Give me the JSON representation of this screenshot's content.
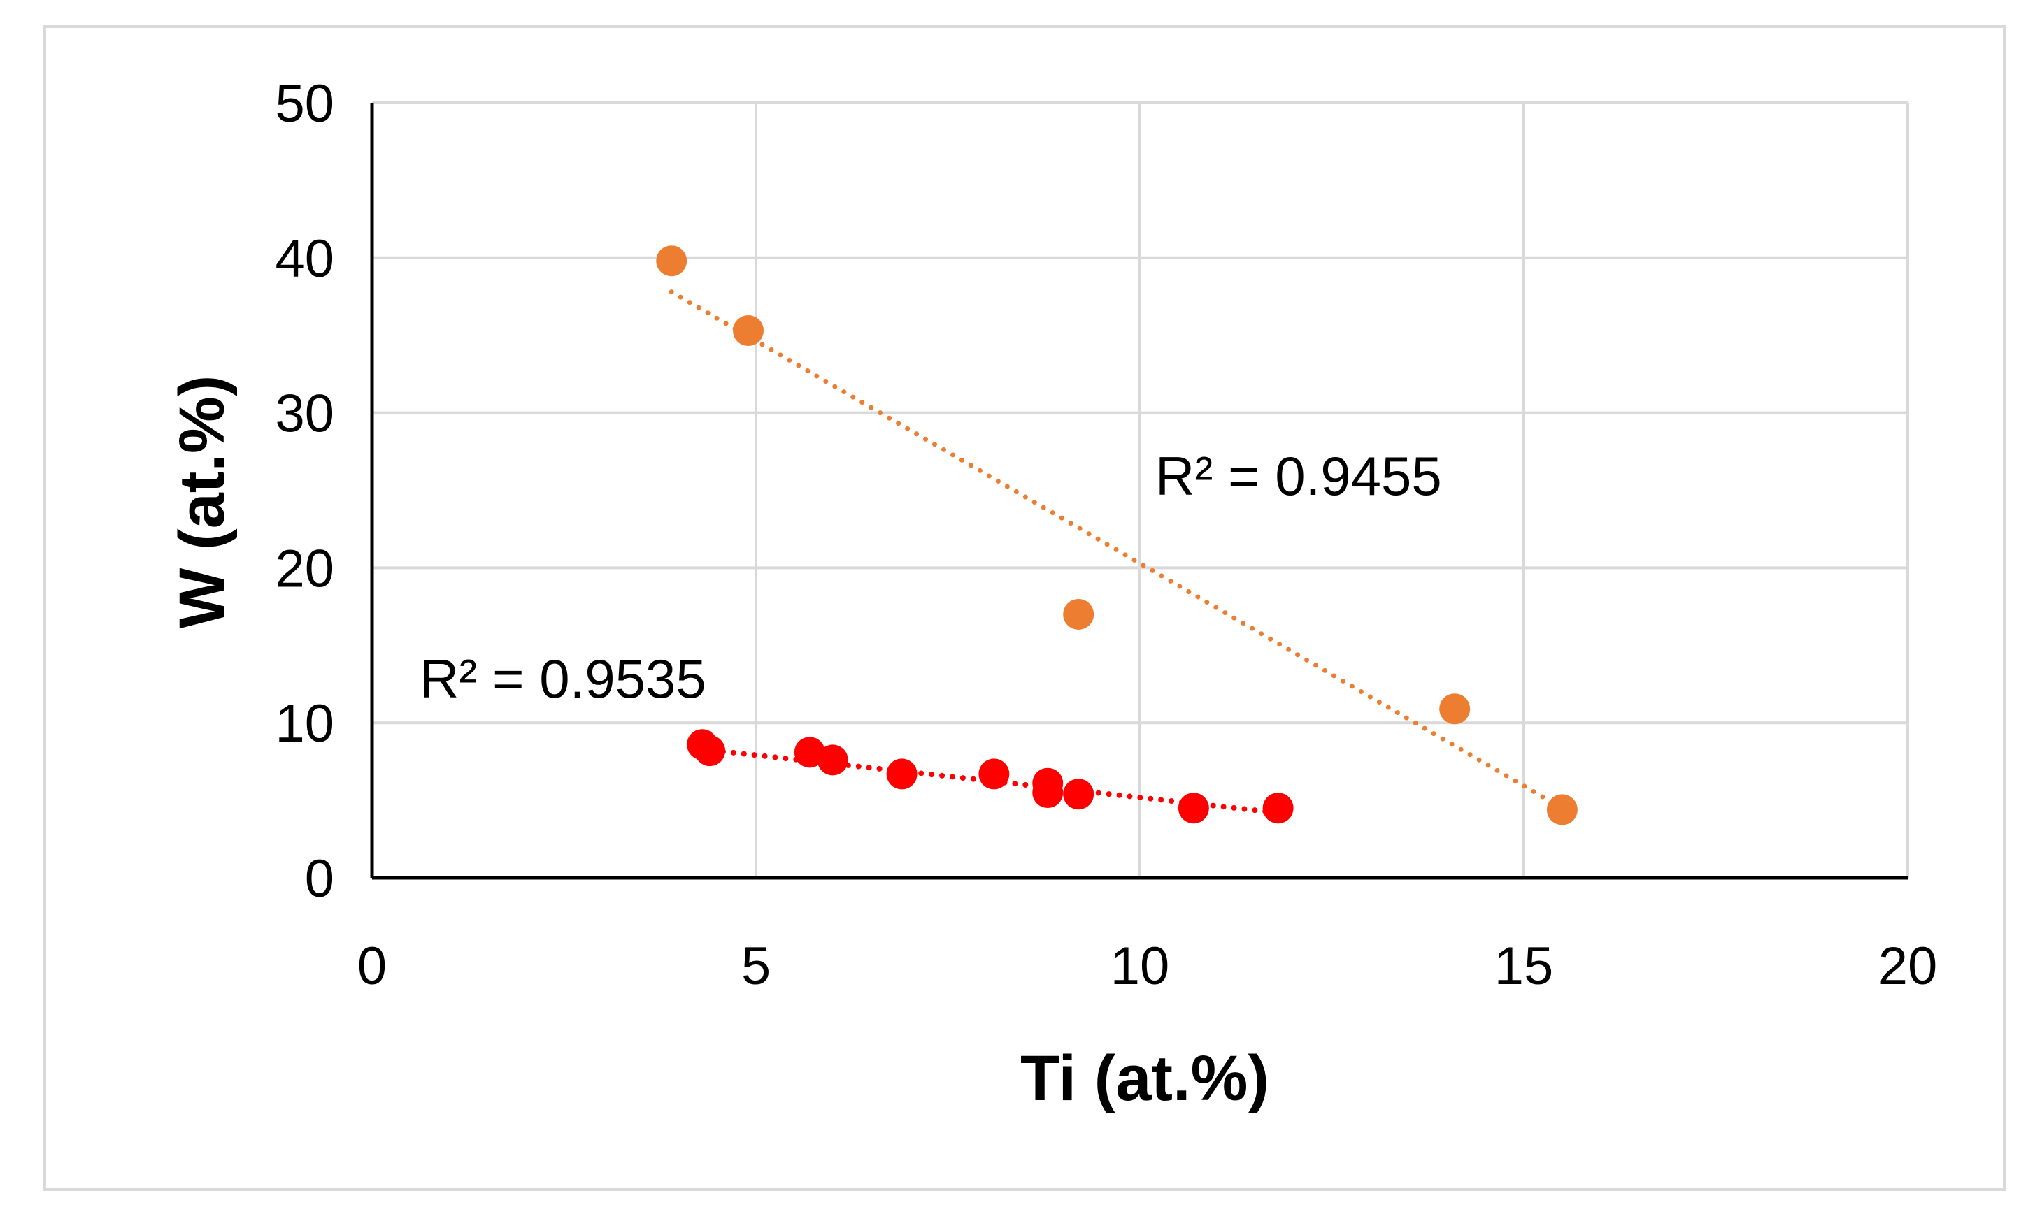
{
  "chart_data": {
    "type": "scatter",
    "title": "",
    "xlabel": "Ti (at.%)",
    "ylabel": "W (at.%)",
    "xlim": [
      0,
      20
    ],
    "ylim": [
      0,
      50
    ],
    "xticks": [
      0,
      5,
      10,
      15,
      20
    ],
    "yticks": [
      0,
      10,
      20,
      30,
      40,
      50
    ],
    "grid": true,
    "series": [
      {
        "name": "orange",
        "color": "#ed7d31",
        "x": [
          3.9,
          4.9,
          9.2,
          14.1,
          15.5
        ],
        "y": [
          39.8,
          35.3,
          17.0,
          10.9,
          4.4
        ],
        "trendline": {
          "type": "linear",
          "dotted": true,
          "x_from": 3.9,
          "x_to": 15.5,
          "y_from": 37.8,
          "y_to": 4.5
        },
        "r2_label": "R² = 0.9455"
      },
      {
        "name": "red",
        "color": "#ff0000",
        "x": [
          4.3,
          4.4,
          5.7,
          6.0,
          6.9,
          8.1,
          8.8,
          8.8,
          9.2,
          10.7,
          11.8
        ],
        "y": [
          8.6,
          8.2,
          8.1,
          7.6,
          6.7,
          6.7,
          6.1,
          5.5,
          5.4,
          4.5,
          4.5
        ],
        "trendline": {
          "type": "linear",
          "dotted": true,
          "x_from": 4.3,
          "x_to": 11.8,
          "y_from": 8.3,
          "y_to": 4.2
        },
        "r2_label": "R² = 0.9535"
      }
    ]
  }
}
